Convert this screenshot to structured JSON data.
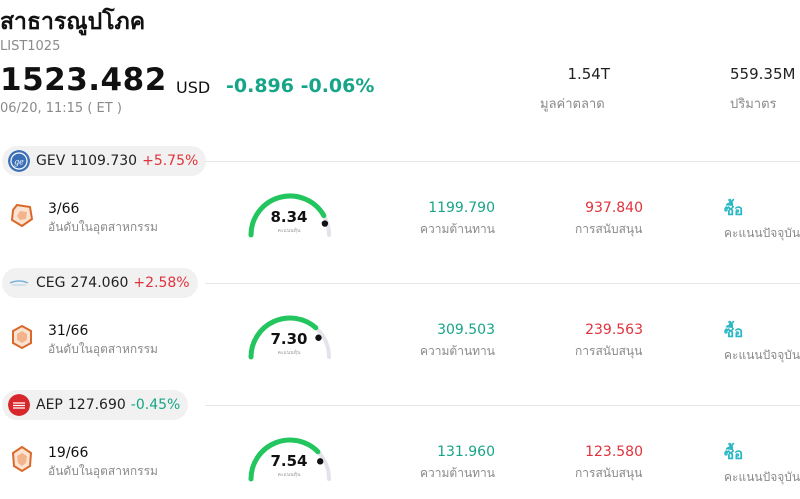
{
  "header": {
    "name": "สาธารณูปโภค",
    "code": "LIST1025",
    "price": "1523.482",
    "currency": "USD",
    "change": "-0.896",
    "change_pct": "-0.06%",
    "time": "06/20, 11:15  ( ET )",
    "market_cap_value": "1.54T",
    "market_cap_label": "มูลค่าตลาด",
    "volume_value": "559.35M",
    "volume_label": "ปริมาตร"
  },
  "colors": {
    "up": "#e0323c",
    "down": "#17a589",
    "buy": "#2bb8c4",
    "gauge": "#22c55e"
  },
  "stocks": [
    {
      "ticker": "GEV",
      "price": "1109.730",
      "change_pct": "+5.75%",
      "direction": "up",
      "logo_icon": "ge-logo-icon",
      "rank": "3/66",
      "rank_label": "อันดับในอุตสาหกรรม",
      "gauge_value": "8.34",
      "gauge_sub": "คะแนนหุ้น",
      "gauge_score": 0.834,
      "resistance": "1199.790",
      "resistance_label": "ความต้านทาน",
      "support": "937.840",
      "support_label": "การสนับสนุน",
      "action": "ซื้อ",
      "action_label": "คะแนนปัจจุบัน"
    },
    {
      "ticker": "CEG",
      "price": "274.060",
      "change_pct": "+2.58%",
      "direction": "up",
      "logo_icon": "constellation-logo-icon",
      "rank": "31/66",
      "rank_label": "อันดับในอุตสาหกรรม",
      "gauge_value": "7.30",
      "gauge_sub": "คะแนนหุ้น",
      "gauge_score": 0.73,
      "resistance": "309.503",
      "resistance_label": "ความต้านทาน",
      "support": "239.563",
      "support_label": "การสนับสนุน",
      "action": "ซื้อ",
      "action_label": "คะแนนปัจจุบัน"
    },
    {
      "ticker": "AEP",
      "price": "127.690",
      "change_pct": "-0.45%",
      "direction": "down",
      "logo_icon": "aep-logo-icon",
      "rank": "19/66",
      "rank_label": "อันดับในอุตสาหกรรม",
      "gauge_value": "7.54",
      "gauge_sub": "คะแนนหุ้น",
      "gauge_score": 0.754,
      "resistance": "131.960",
      "resistance_label": "ความต้านทาน",
      "support": "123.580",
      "support_label": "การสนับสนุน",
      "action": "ซื้อ",
      "action_label": "คะแนนปัจจุบัน"
    }
  ]
}
